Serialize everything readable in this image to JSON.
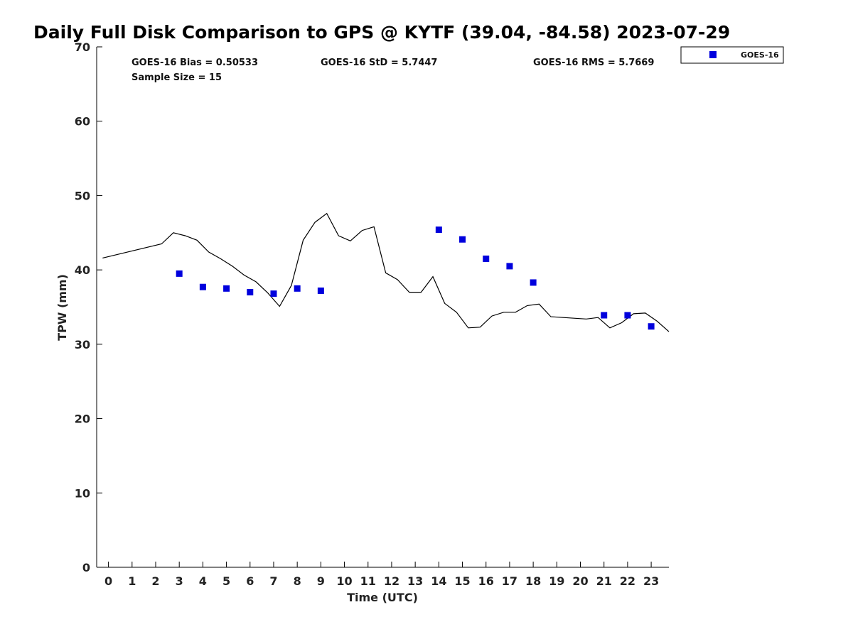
{
  "chart_data": {
    "type": "scatter",
    "title": "Daily Full Disk Comparison to GPS @ KYTF (39.04, -84.58) 2023-07-29",
    "xlabel": "Time (UTC)",
    "ylabel": "TPW (mm)",
    "xlim": [
      -0.5,
      23.75
    ],
    "ylim": [
      0,
      70
    ],
    "xticks": [
      0,
      1,
      2,
      3,
      4,
      5,
      6,
      7,
      8,
      9,
      10,
      11,
      12,
      13,
      14,
      15,
      16,
      17,
      18,
      19,
      20,
      21,
      22,
      23
    ],
    "yticks": [
      0,
      10,
      20,
      30,
      40,
      50,
      60,
      70
    ],
    "grid": false,
    "legend_position": "top-right",
    "stats": {
      "bias": "GOES-16 Bias = 0.50533",
      "std": "GOES-16 StD = 5.7447",
      "rms": "GOES-16 RMS = 5.7669",
      "sample": "Sample Size = 15"
    },
    "series": [
      {
        "name": "GOES-16",
        "kind": "scatter",
        "color": "#0000dd",
        "x": [
          3,
          4,
          5,
          6,
          7,
          8,
          9,
          14,
          15,
          16,
          17,
          18,
          21,
          22,
          23
        ],
        "y": [
          39.5,
          37.7,
          37.5,
          37.0,
          36.8,
          37.5,
          37.2,
          45.4,
          44.1,
          41.5,
          40.5,
          38.3,
          33.9,
          33.9,
          32.4
        ]
      },
      {
        "kind": "line",
        "color": "#000000",
        "x": [
          -0.25,
          2.25,
          2.75,
          3.25,
          3.75,
          4.25,
          4.75,
          5.25,
          5.75,
          6.25,
          6.75,
          7.25,
          7.75,
          8.25,
          8.75,
          9.25,
          9.75,
          10.25,
          10.75,
          11.25,
          11.75,
          12.25,
          12.75,
          13.25,
          13.75,
          14.25,
          14.75,
          15.25,
          15.75,
          16.25,
          16.75,
          17.25,
          17.75,
          18.25,
          18.75,
          20.25,
          20.75,
          21.25,
          21.75,
          22.25,
          22.75,
          23.25,
          23.75
        ],
        "y": [
          41.6,
          43.5,
          45.0,
          44.6,
          44.0,
          42.4,
          41.5,
          40.5,
          39.3,
          38.4,
          36.9,
          35.1,
          37.9,
          44.0,
          46.4,
          47.6,
          44.6,
          43.9,
          45.3,
          45.8,
          39.6,
          38.7,
          37.0,
          37.0,
          39.1,
          35.5,
          34.3,
          32.2,
          32.3,
          33.8,
          34.3,
          34.3,
          35.2,
          35.4,
          33.7,
          33.4,
          33.6,
          32.2,
          32.9,
          34.1,
          34.2,
          33.1,
          31.7
        ]
      }
    ]
  }
}
